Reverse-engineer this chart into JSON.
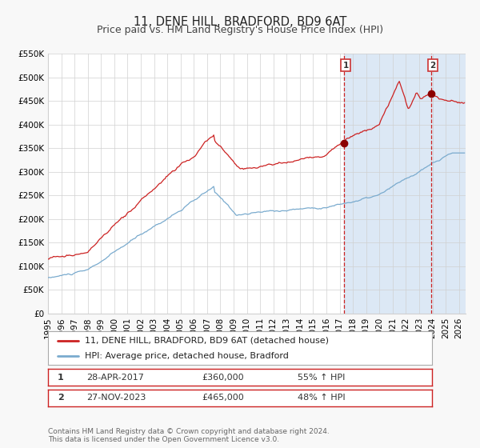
{
  "title": "11, DENE HILL, BRADFORD, BD9 6AT",
  "subtitle": "Price paid vs. HM Land Registry's House Price Index (HPI)",
  "ylim": [
    0,
    550000
  ],
  "yticks": [
    0,
    50000,
    100000,
    150000,
    200000,
    250000,
    300000,
    350000,
    400000,
    450000,
    500000,
    550000
  ],
  "ytick_labels": [
    "£0",
    "£50K",
    "£100K",
    "£150K",
    "£200K",
    "£250K",
    "£300K",
    "£350K",
    "£400K",
    "£450K",
    "£500K",
    "£550K"
  ],
  "xlim_start": 1995.0,
  "xlim_end": 2026.5,
  "xticks": [
    1995,
    1996,
    1997,
    1998,
    1999,
    2000,
    2001,
    2002,
    2003,
    2004,
    2005,
    2006,
    2007,
    2008,
    2009,
    2010,
    2011,
    2012,
    2013,
    2014,
    2015,
    2016,
    2017,
    2018,
    2019,
    2020,
    2021,
    2022,
    2023,
    2024,
    2025,
    2026
  ],
  "price_paid_color": "#cc2222",
  "hpi_color": "#7aabce",
  "fig_bg_color": "#f8f8f8",
  "plot_bg_color": "#ffffff",
  "grid_color": "#d0d0d0",
  "span1_color": "#dce8f5",
  "span2_hatch_color": "#c0d0e8",
  "marker1_x": 2017.33,
  "marker1_y": 360000,
  "marker2_x": 2023.92,
  "marker2_y": 465000,
  "marker1_label": "1",
  "marker2_label": "2",
  "marker1_date": "28-APR-2017",
  "marker1_price": "£360,000",
  "marker1_hpi": "55% ↑ HPI",
  "marker2_date": "27-NOV-2023",
  "marker2_price": "£465,000",
  "marker2_hpi": "48% ↑ HPI",
  "legend_line1": "11, DENE HILL, BRADFORD, BD9 6AT (detached house)",
  "legend_line2": "HPI: Average price, detached house, Bradford",
  "footer1": "Contains HM Land Registry data © Crown copyright and database right 2024.",
  "footer2": "This data is licensed under the Open Government Licence v3.0.",
  "title_fontsize": 10.5,
  "subtitle_fontsize": 9,
  "tick_fontsize": 7.5,
  "legend_fontsize": 8,
  "footer_fontsize": 6.5
}
